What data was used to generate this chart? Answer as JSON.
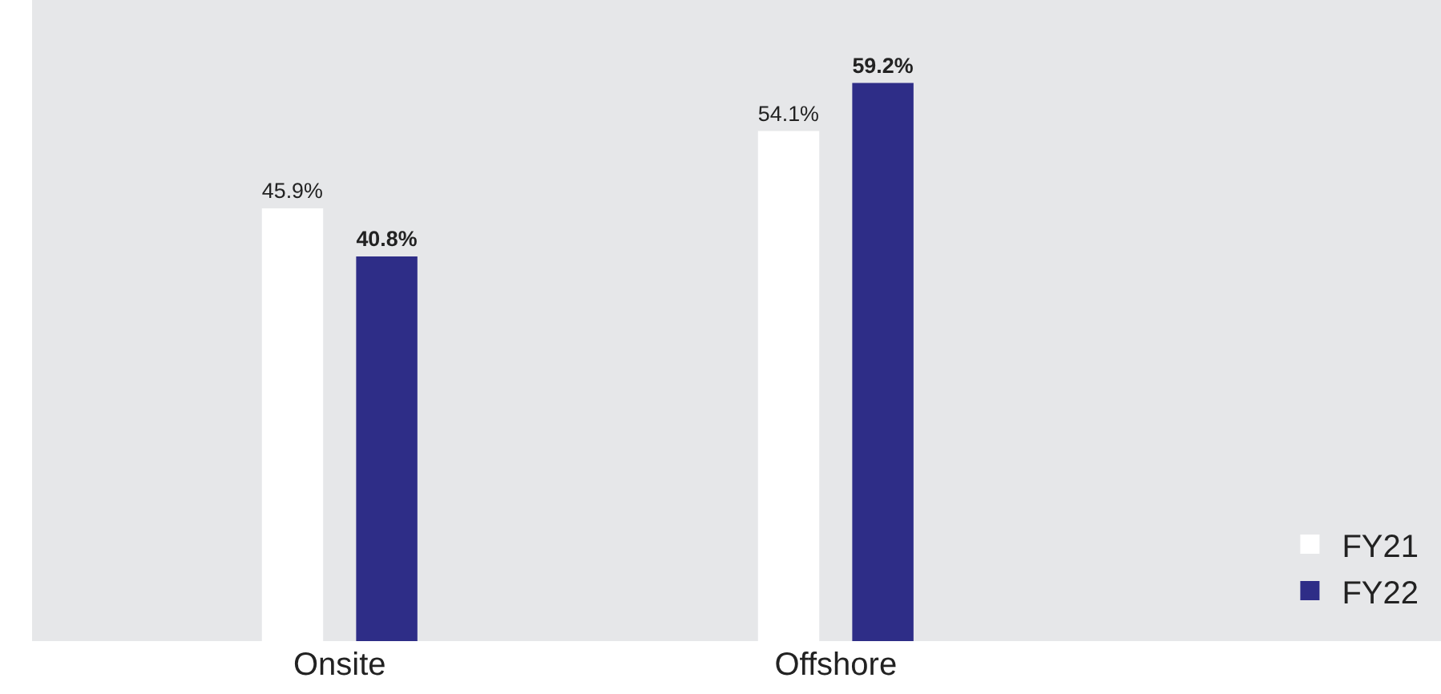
{
  "chart_data": {
    "type": "bar",
    "categories": [
      "Onsite",
      "Offshore"
    ],
    "series": [
      {
        "name": "FY21",
        "color": "#ffffff",
        "values": [
          45.9,
          54.1
        ],
        "value_labels": [
          "45.9%",
          "54.1%"
        ]
      },
      {
        "name": "FY22",
        "color": "#2e2d87",
        "values": [
          40.8,
          59.2
        ],
        "value_labels": [
          "40.8%",
          "59.2%"
        ]
      }
    ],
    "ylim": [
      0,
      68
    ],
    "grid": false,
    "legend": "bottom right",
    "tick_labels": "x"
  }
}
